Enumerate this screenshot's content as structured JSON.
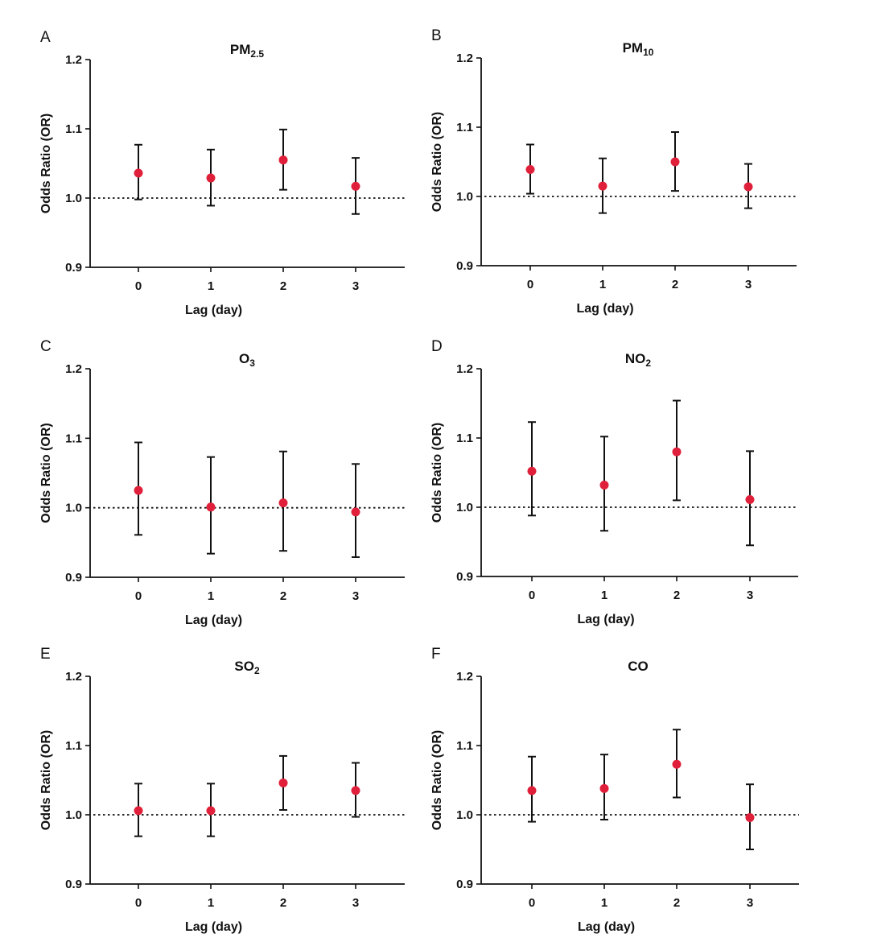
{
  "figure": {
    "accent_point_color": "#e0203a",
    "line_color": "#111111"
  },
  "chart_data": [
    {
      "type": "scatter",
      "panel": "A",
      "title": "PM",
      "title_sub": "2.5",
      "xlabel": "Lag (day)",
      "ylabel": "Odds Ratio (OR)",
      "categories": [
        "0",
        "1",
        "2",
        "3"
      ],
      "ylim": [
        0.9,
        1.2
      ],
      "yticks": [
        "0.9",
        "1.0",
        "1.1",
        "1.2"
      ],
      "reference_line": 1.0,
      "points": [
        {
          "x": "0",
          "or": 1.036,
          "lower": 0.998,
          "upper": 1.077
        },
        {
          "x": "1",
          "or": 1.029,
          "lower": 0.989,
          "upper": 1.07
        },
        {
          "x": "2",
          "or": 1.055,
          "lower": 1.012,
          "upper": 1.099
        },
        {
          "x": "3",
          "or": 1.017,
          "lower": 0.977,
          "upper": 1.058
        }
      ]
    },
    {
      "type": "scatter",
      "panel": "B",
      "title": "PM",
      "title_sub": "10",
      "xlabel": "Lag (day)",
      "ylabel": "Odds Ratio (OR)",
      "categories": [
        "0",
        "1",
        "2",
        "3"
      ],
      "ylim": [
        0.9,
        1.2
      ],
      "yticks": [
        "0.9",
        "1.0",
        "1.1",
        "1.2"
      ],
      "reference_line": 1.0,
      "points": [
        {
          "x": "0",
          "or": 1.039,
          "lower": 1.004,
          "upper": 1.075
        },
        {
          "x": "1",
          "or": 1.015,
          "lower": 0.976,
          "upper": 1.055
        },
        {
          "x": "2",
          "or": 1.05,
          "lower": 1.008,
          "upper": 1.093
        },
        {
          "x": "3",
          "or": 1.014,
          "lower": 0.983,
          "upper": 1.047
        }
      ]
    },
    {
      "type": "scatter",
      "panel": "C",
      "title": "O",
      "title_sub": "3",
      "xlabel": "Lag (day)",
      "ylabel": "Odds Ratio (OR)",
      "categories": [
        "0",
        "1",
        "2",
        "3"
      ],
      "ylim": [
        0.9,
        1.2
      ],
      "yticks": [
        "0.9",
        "1.0",
        "1.1",
        "1.2"
      ],
      "reference_line": 1.0,
      "points": [
        {
          "x": "0",
          "or": 1.025,
          "lower": 0.961,
          "upper": 1.094
        },
        {
          "x": "1",
          "or": 1.001,
          "lower": 0.934,
          "upper": 1.073
        },
        {
          "x": "2",
          "or": 1.007,
          "lower": 0.938,
          "upper": 1.081
        },
        {
          "x": "3",
          "or": 0.994,
          "lower": 0.929,
          "upper": 1.063
        }
      ]
    },
    {
      "type": "scatter",
      "panel": "D",
      "title": "NO",
      "title_sub": "2",
      "xlabel": "Lag (day)",
      "ylabel": "Odds Ratio (OR)",
      "categories": [
        "0",
        "1",
        "2",
        "3"
      ],
      "ylim": [
        0.9,
        1.2
      ],
      "yticks": [
        "0.9",
        "1.0",
        "1.1",
        "1.2"
      ],
      "reference_line": 1.0,
      "points": [
        {
          "x": "0",
          "or": 1.052,
          "lower": 0.988,
          "upper": 1.123
        },
        {
          "x": "1",
          "or": 1.032,
          "lower": 0.966,
          "upper": 1.102
        },
        {
          "x": "2",
          "or": 1.08,
          "lower": 1.01,
          "upper": 1.154
        },
        {
          "x": "3",
          "or": 1.011,
          "lower": 0.945,
          "upper": 1.081
        }
      ]
    },
    {
      "type": "scatter",
      "panel": "E",
      "title": "SO",
      "title_sub": "2",
      "xlabel": "Lag (day)",
      "ylabel": "Odds Ratio (OR)",
      "categories": [
        "0",
        "1",
        "2",
        "3"
      ],
      "ylim": [
        0.9,
        1.2
      ],
      "yticks": [
        "0.9",
        "1.0",
        "1.1",
        "1.2"
      ],
      "reference_line": 1.0,
      "points": [
        {
          "x": "0",
          "or": 1.006,
          "lower": 0.969,
          "upper": 1.045
        },
        {
          "x": "1",
          "or": 1.006,
          "lower": 0.969,
          "upper": 1.045
        },
        {
          "x": "2",
          "or": 1.046,
          "lower": 1.007,
          "upper": 1.085
        },
        {
          "x": "3",
          "or": 1.035,
          "lower": 0.997,
          "upper": 1.075
        }
      ]
    },
    {
      "type": "scatter",
      "panel": "F",
      "title": "CO",
      "title_sub": "",
      "xlabel": "Lag (day)",
      "ylabel": "Odds Ratio (OR)",
      "categories": [
        "0",
        "1",
        "2",
        "3"
      ],
      "ylim": [
        0.9,
        1.2
      ],
      "yticks": [
        "0.9",
        "1.0",
        "1.1",
        "1.2"
      ],
      "reference_line": 1.0,
      "points": [
        {
          "x": "0",
          "or": 1.035,
          "lower": 0.99,
          "upper": 1.084
        },
        {
          "x": "1",
          "or": 1.038,
          "lower": 0.993,
          "upper": 1.087
        },
        {
          "x": "2",
          "or": 1.073,
          "lower": 1.025,
          "upper": 1.123
        },
        {
          "x": "3",
          "or": 0.996,
          "lower": 0.95,
          "upper": 1.044
        }
      ]
    }
  ]
}
